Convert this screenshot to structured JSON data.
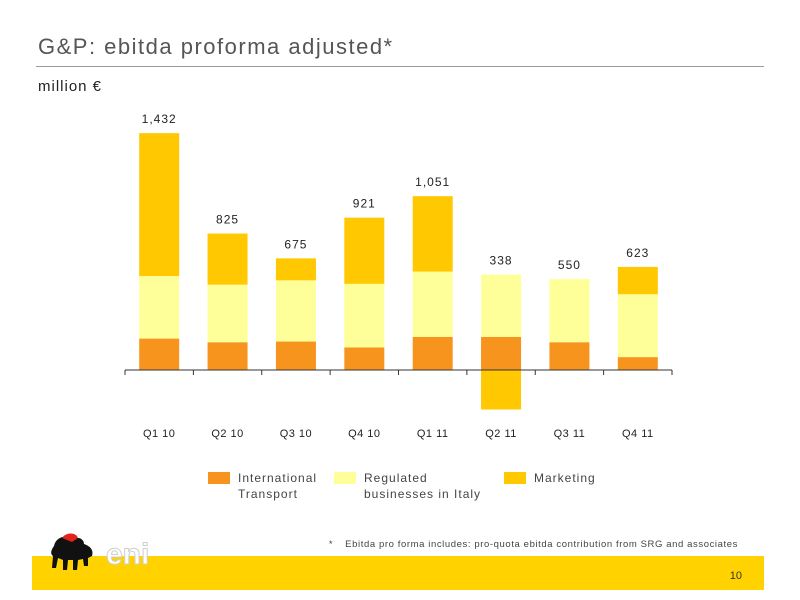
{
  "header": {
    "title": "G&P: ebitda proforma adjusted*",
    "subtitle": "million €"
  },
  "colors": {
    "international_transport": "#f7941d",
    "regulated": "#ffff99",
    "marketing": "#ffc800",
    "brand_yellow": "#ffd200"
  },
  "chart_data": {
    "type": "bar",
    "stacked": true,
    "categories": [
      "Q1 10",
      "Q2 10",
      "Q3 10",
      "Q4 10",
      "Q1 11",
      "Q2 11",
      "Q3 11",
      "Q4 11"
    ],
    "totals": [
      "1,432",
      "825",
      "675",
      "921",
      "1,051",
      "338",
      "550",
      "623"
    ],
    "series": [
      {
        "name": "International Transport",
        "values": [
          190,
          168,
          172,
          136,
          200,
          200,
          168,
          78
        ]
      },
      {
        "name": "Regulated businesses in Italy",
        "values": [
          378,
          348,
          370,
          385,
          395,
          377,
          382,
          380
        ]
      },
      {
        "name": "Marketing",
        "values": [
          864,
          309,
          133,
          400,
          456,
          -239,
          0,
          165
        ]
      }
    ],
    "ylim": [
      -250,
      1450
    ],
    "grid": false,
    "legend_position": "bottom"
  },
  "legend": {
    "items": [
      {
        "label": "International\nTransport",
        "color": "#f7941d"
      },
      {
        "label": "Regulated\nbusinesses in Italy",
        "color": "#ffff99"
      },
      {
        "label": "Marketing",
        "color": "#ffc800"
      }
    ]
  },
  "footnote": {
    "marker": "*",
    "text": "Ebitda pro forma includes: pro-quota ebitda contribution from SRG and associates"
  },
  "footer": {
    "logo_text": "eni",
    "page_number": "10"
  }
}
